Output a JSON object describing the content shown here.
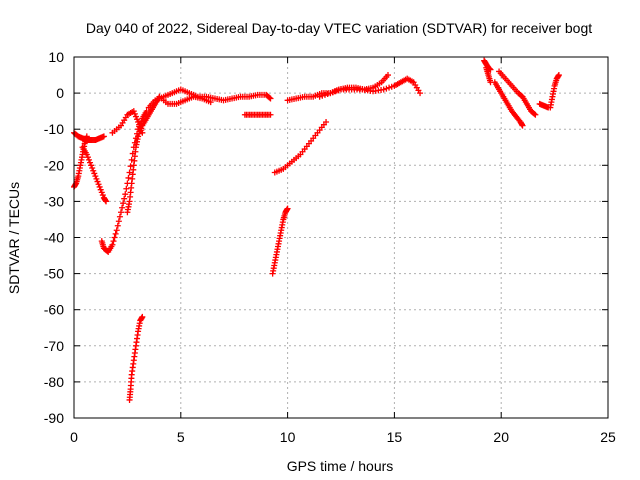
{
  "chart_data": {
    "type": "scatter",
    "title": "Day 040 of 2022, Sidereal Day-to-day VTEC variation (SDTVAR) for receiver bogt",
    "xlabel": "GPS time / hours",
    "ylabel": "SDTVAR / TECUs",
    "xlim": [
      0,
      25
    ],
    "ylim": [
      -90,
      10
    ],
    "xticks": [
      0,
      5,
      10,
      15,
      20,
      25
    ],
    "yticks": [
      10,
      0,
      -10,
      -20,
      -30,
      -40,
      -50,
      -60,
      -70,
      -80,
      -90
    ],
    "xtick_labels": [
      "0",
      "5",
      "10",
      "15",
      "20",
      "25"
    ],
    "ytick_labels": [
      "10",
      "0",
      "-10",
      "-20",
      "-30",
      "-40",
      "-50",
      "-60",
      "-70",
      "-80",
      "-90"
    ],
    "grid": true,
    "marker": "+",
    "color": "#ff0000",
    "series": [
      {
        "points": [
          [
            0.0,
            -11
          ],
          [
            0.2,
            -12
          ],
          [
            0.4,
            -12.5
          ],
          [
            0.6,
            -13
          ],
          [
            0.8,
            -13
          ],
          [
            1.0,
            -13
          ],
          [
            1.2,
            -12.5
          ],
          [
            1.4,
            -12
          ]
        ]
      },
      {
        "points": [
          [
            0.0,
            -26
          ],
          [
            0.1,
            -25
          ],
          [
            0.2,
            -23
          ],
          [
            0.3,
            -20
          ],
          [
            0.4,
            -17
          ],
          [
            0.5,
            -14
          ],
          [
            0.6,
            -12
          ]
        ]
      },
      {
        "points": [
          [
            0.4,
            -15
          ],
          [
            0.6,
            -17
          ],
          [
            0.8,
            -20
          ],
          [
            1.0,
            -23
          ],
          [
            1.2,
            -26
          ],
          [
            1.4,
            -29
          ],
          [
            1.5,
            -30
          ]
        ]
      },
      {
        "points": [
          [
            1.3,
            -41
          ],
          [
            1.4,
            -43
          ],
          [
            1.6,
            -44
          ],
          [
            1.8,
            -42
          ],
          [
            2.0,
            -38
          ],
          [
            2.2,
            -33
          ],
          [
            2.4,
            -28
          ],
          [
            2.6,
            -22
          ],
          [
            2.8,
            -15
          ],
          [
            3.0,
            -10
          ],
          [
            3.2,
            -7
          ],
          [
            3.4,
            -5
          ]
        ]
      },
      {
        "points": [
          [
            2.5,
            -33
          ],
          [
            2.6,
            -30
          ],
          [
            2.7,
            -25
          ],
          [
            2.8,
            -20
          ],
          [
            2.9,
            -15
          ],
          [
            3.0,
            -12
          ],
          [
            3.2,
            -9
          ],
          [
            3.4,
            -7
          ],
          [
            3.6,
            -5
          ],
          [
            3.8,
            -3
          ],
          [
            4.0,
            -1
          ]
        ]
      },
      {
        "points": [
          [
            1.8,
            -11
          ],
          [
            2.2,
            -9
          ],
          [
            2.5,
            -6
          ],
          [
            2.8,
            -5
          ],
          [
            3.0,
            -8
          ],
          [
            3.2,
            -11
          ]
        ]
      },
      {
        "points": [
          [
            2.6,
            -85
          ],
          [
            2.65,
            -82
          ],
          [
            2.7,
            -78
          ],
          [
            2.8,
            -74
          ],
          [
            2.9,
            -70
          ],
          [
            3.0,
            -66
          ],
          [
            3.1,
            -63
          ],
          [
            3.2,
            -62
          ]
        ]
      },
      {
        "points": [
          [
            3.5,
            -4
          ],
          [
            3.8,
            -2
          ],
          [
            4.2,
            -1
          ],
          [
            4.6,
            0
          ],
          [
            5.0,
            1
          ],
          [
            5.4,
            0
          ],
          [
            5.8,
            -1
          ],
          [
            6.2,
            -1
          ],
          [
            6.6,
            -1.5
          ],
          [
            7.0,
            -2
          ],
          [
            7.4,
            -1.5
          ],
          [
            7.8,
            -1
          ],
          [
            8.2,
            -1
          ],
          [
            8.6,
            -0.5
          ],
          [
            9.0,
            -0.5
          ],
          [
            9.2,
            -1.5
          ]
        ]
      },
      {
        "points": [
          [
            4.0,
            -1
          ],
          [
            4.4,
            -3
          ],
          [
            4.8,
            -3
          ],
          [
            5.2,
            -2
          ],
          [
            5.6,
            -1
          ],
          [
            6.0,
            -1.5
          ],
          [
            6.4,
            -2.5
          ]
        ]
      },
      {
        "points": [
          [
            8.0,
            -6
          ],
          [
            8.3,
            -6
          ],
          [
            8.6,
            -6
          ],
          [
            8.9,
            -6
          ],
          [
            9.2,
            -6
          ]
        ]
      },
      {
        "points": [
          [
            9.3,
            -50
          ],
          [
            9.4,
            -47
          ],
          [
            9.5,
            -44
          ],
          [
            9.6,
            -41
          ],
          [
            9.7,
            -38
          ],
          [
            9.8,
            -35
          ],
          [
            9.9,
            -33
          ],
          [
            10.0,
            -32
          ]
        ]
      },
      {
        "points": [
          [
            9.4,
            -22
          ],
          [
            9.8,
            -21
          ],
          [
            10.2,
            -19
          ],
          [
            10.6,
            -17
          ],
          [
            11.0,
            -14
          ],
          [
            11.4,
            -11
          ],
          [
            11.8,
            -8
          ]
        ]
      },
      {
        "points": [
          [
            10.0,
            -2
          ],
          [
            10.4,
            -1.5
          ],
          [
            10.8,
            -1
          ],
          [
            11.2,
            -1
          ],
          [
            11.6,
            0
          ],
          [
            12.0,
            0
          ],
          [
            12.4,
            1
          ],
          [
            12.8,
            1.5
          ],
          [
            13.2,
            1.5
          ],
          [
            13.6,
            1
          ],
          [
            14.0,
            1.5
          ],
          [
            14.4,
            3
          ],
          [
            14.7,
            5
          ]
        ]
      },
      {
        "points": [
          [
            11.5,
            -1
          ],
          [
            12.0,
            0
          ],
          [
            12.5,
            1
          ],
          [
            13.0,
            1
          ],
          [
            13.5,
            1
          ],
          [
            14.0,
            0.5
          ],
          [
            14.5,
            1
          ],
          [
            15.0,
            2
          ],
          [
            15.3,
            3
          ],
          [
            15.6,
            4
          ],
          [
            15.9,
            3
          ],
          [
            16.2,
            0
          ]
        ]
      },
      {
        "points": [
          [
            19.2,
            9
          ],
          [
            19.3,
            8
          ],
          [
            19.4,
            7
          ],
          [
            19.5,
            6.5
          ]
        ]
      },
      {
        "points": [
          [
            19.3,
            7
          ],
          [
            19.4,
            5
          ],
          [
            19.5,
            3
          ]
        ]
      },
      {
        "points": [
          [
            19.7,
            3
          ],
          [
            19.9,
            1
          ],
          [
            20.1,
            -1
          ],
          [
            20.3,
            -3
          ],
          [
            20.5,
            -5
          ],
          [
            20.7,
            -6.5
          ],
          [
            20.9,
            -8
          ],
          [
            21.0,
            -9
          ]
        ]
      },
      {
        "points": [
          [
            19.9,
            6
          ],
          [
            20.2,
            4
          ],
          [
            20.5,
            2
          ],
          [
            20.8,
            0
          ],
          [
            21.0,
            -1
          ],
          [
            21.2,
            -3
          ],
          [
            21.4,
            -5
          ],
          [
            21.6,
            -6
          ]
        ]
      },
      {
        "points": [
          [
            21.8,
            -3
          ],
          [
            22.0,
            -3.5
          ],
          [
            22.2,
            -4
          ]
        ]
      },
      {
        "points": [
          [
            22.3,
            -4
          ],
          [
            22.4,
            -1
          ],
          [
            22.5,
            2
          ],
          [
            22.6,
            4
          ],
          [
            22.7,
            5
          ]
        ]
      }
    ]
  }
}
